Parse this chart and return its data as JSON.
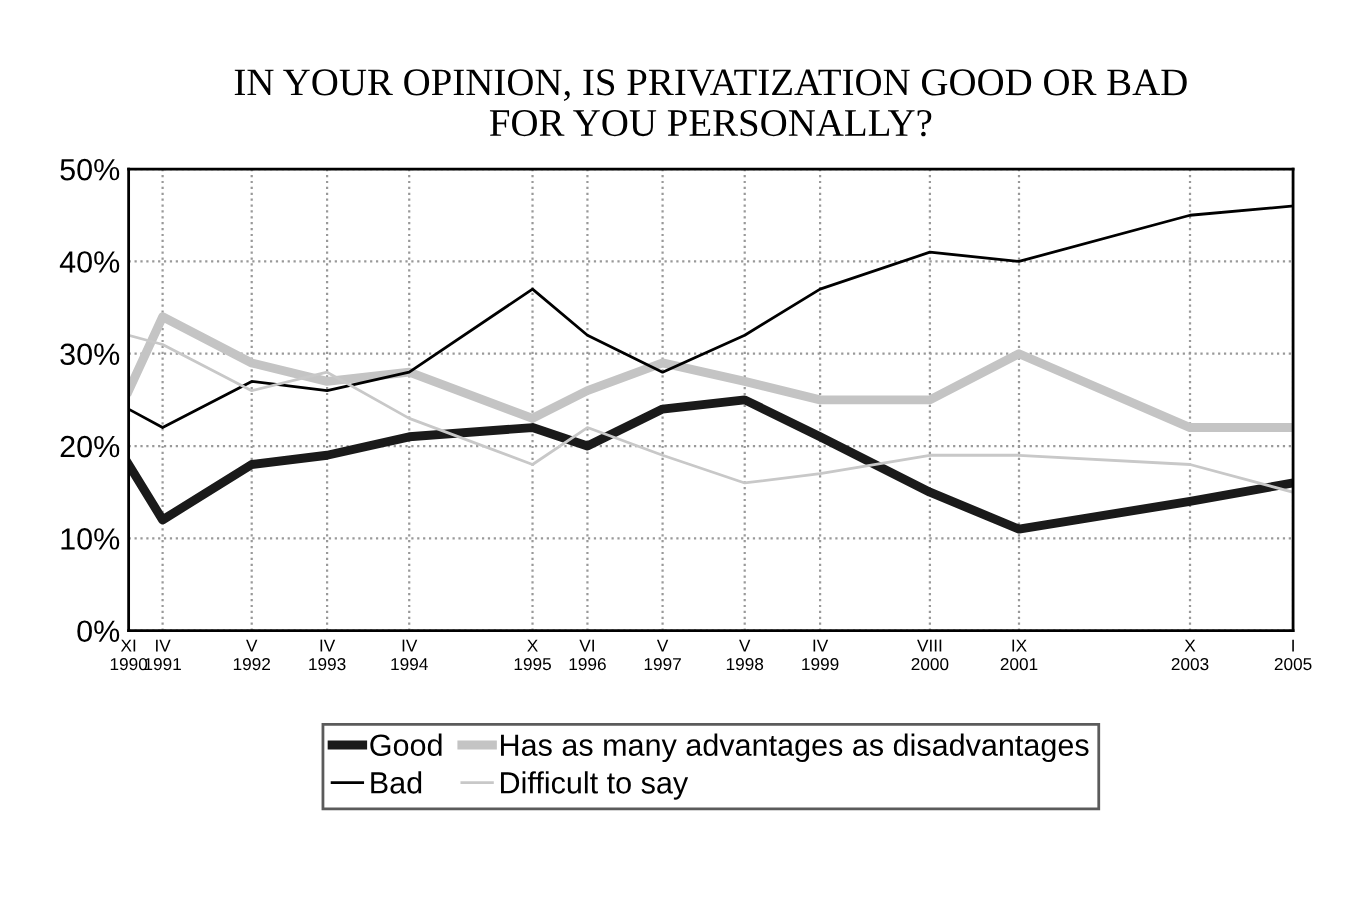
{
  "chart_data": {
    "type": "line",
    "title": "IN YOUR OPINION, IS PRIVATIZATION GOOD OR BAD\nFOR YOU PERSONALLY?",
    "x": [
      "1990-11",
      "1991-04",
      "1992-05",
      "1993-04",
      "1994-04",
      "1995-10",
      "1996-06",
      "1997-05",
      "1998-05",
      "1999-04",
      "2000-08",
      "2001-09",
      "2003-10",
      "2005-01"
    ],
    "series": [
      {
        "name": "Good",
        "color": "#1a1a1a",
        "values": [
          18,
          12,
          18,
          19,
          21,
          22,
          20,
          24,
          25,
          21,
          15,
          11,
          14,
          16
        ]
      },
      {
        "name": "Has as many advantages as disadvantages",
        "color": "#c4c4c4",
        "values": [
          26,
          34,
          29,
          27,
          28,
          23,
          26,
          29,
          27,
          25,
          25,
          30,
          22,
          22
        ]
      },
      {
        "name": "Bad",
        "color": "#000000",
        "values": [
          24,
          22,
          27,
          26,
          28,
          37,
          32,
          28,
          32,
          37,
          41,
          40,
          45,
          46
        ]
      },
      {
        "name": "Difficult to say",
        "color": "#c8c8c8",
        "values": [
          32,
          31,
          26,
          28,
          23,
          18,
          22,
          19,
          16,
          17,
          19,
          19,
          18,
          15
        ]
      }
    ],
    "xlim": [
      "1990-11",
      "2005-01"
    ],
    "xticks": [
      {
        "value": "1990-11",
        "label": "XI\n1990"
      },
      {
        "value": "1991-04",
        "label": "IV\n1991"
      },
      {
        "value": "1992-05",
        "label": "V\n1992"
      },
      {
        "value": "1993-04",
        "label": "IV\n1993"
      },
      {
        "value": "1994-04",
        "label": "IV\n1994"
      },
      {
        "value": "1995-10",
        "label": "X\n1995"
      },
      {
        "value": "1996-06",
        "label": "VI\n1996"
      },
      {
        "value": "1997-05",
        "label": "V\n1997"
      },
      {
        "value": "1998-05",
        "label": "V\n1998"
      },
      {
        "value": "1999-04",
        "label": "IV\n1999"
      },
      {
        "value": "2000-08",
        "label": "VIII\n2000"
      },
      {
        "value": "2001-09",
        "label": "IX\n2001"
      },
      {
        "value": "2003-10",
        "label": "X\n2003"
      },
      {
        "value": "2005-01",
        "label": "I\n2005"
      }
    ],
    "ylim": [
      0,
      50
    ],
    "yticks": [
      {
        "value": 0,
        "label": "0%"
      },
      {
        "value": 10,
        "label": "10%"
      },
      {
        "value": 20,
        "label": "20%"
      },
      {
        "value": 30,
        "label": "30%"
      },
      {
        "value": 40,
        "label": "40%"
      },
      {
        "value": 50,
        "label": "50%"
      }
    ],
    "grid": true,
    "legend": "bottom",
    "marker": "none",
    "line_style": "solid"
  }
}
